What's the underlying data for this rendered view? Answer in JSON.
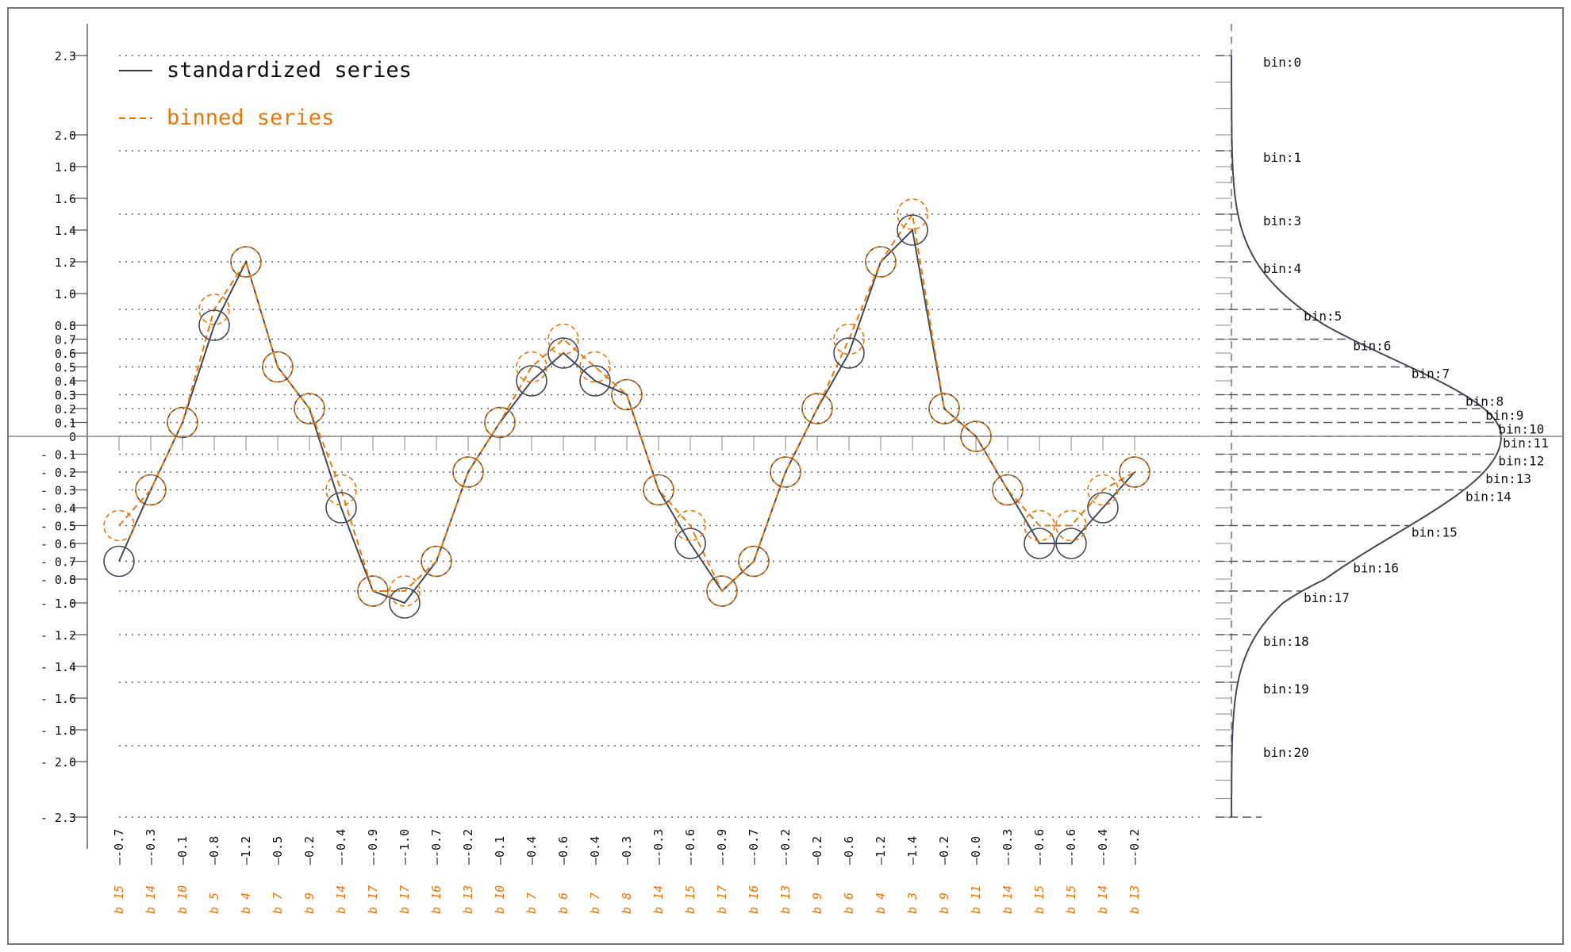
{
  "chart_data": {
    "type": "line",
    "legend": {
      "placement": "top-left",
      "entries": [
        "standardized series",
        "binned series"
      ]
    },
    "y_tick_labels": [
      "2.3",
      "2.0",
      "1.8",
      "1.6",
      "1.4",
      "1.2",
      "1.0",
      "0.8",
      "0.7",
      "0.6",
      "0.5",
      "0.4",
      "0.3",
      "0.2",
      "0.1",
      "0",
      "- 0.1",
      "- 0.2",
      "- 0.3",
      "- 0.4",
      "- 0.5",
      "- 0.6",
      "- 0.7",
      "- 0.8",
      "- 1.0",
      "- 1.2",
      "- 1.4",
      "- 1.6",
      "- 1.8",
      "- 2.0",
      "- 2.3"
    ],
    "ylim": [
      -2.3,
      2.3
    ],
    "grid": "dotted horizontal at bin edges",
    "x_labels": [
      "-0.7",
      "-0.3",
      "0.1",
      "0.8",
      "1.2",
      "0.5",
      "0.2",
      "-0.4",
      "-0.9",
      "-1.0",
      "-0.7",
      "-0.2",
      "0.1",
      "0.4",
      "0.6",
      "0.4",
      "0.3",
      "-0.3",
      "-0.6",
      "-0.9",
      "-0.7",
      "-0.2",
      "0.2",
      "0.6",
      "1.2",
      "1.4",
      "0.2",
      "0.0",
      "-0.3",
      "-0.6",
      "-0.6",
      "-0.4",
      "-0.2"
    ],
    "bin_labels": [
      "b 15",
      "b 14",
      "b 10",
      "b 5",
      "b 4",
      "b 7",
      "b 9",
      "b 14",
      "b 17",
      "b 17",
      "b 16",
      "b 13",
      "b 10",
      "b 7",
      "b 6",
      "b 7",
      "b 8",
      "b 14",
      "b 15",
      "b 17",
      "b 16",
      "b 13",
      "b 9",
      "b 6",
      "b 4",
      "b 3",
      "b 9",
      "b 11",
      "b 14",
      "b 15",
      "b 15",
      "b 14",
      "b 13"
    ],
    "series": [
      {
        "name": "standardized series",
        "color": "#444a55",
        "style": "solid",
        "values": [
          -0.7,
          -0.3,
          0.1,
          0.8,
          1.2,
          0.5,
          0.2,
          -0.4,
          -0.9,
          -1.0,
          -0.7,
          -0.2,
          0.1,
          0.4,
          0.6,
          0.4,
          0.3,
          -0.3,
          -0.6,
          -0.9,
          -0.7,
          -0.2,
          0.2,
          0.6,
          1.2,
          1.4,
          0.2,
          0.0,
          -0.3,
          -0.6,
          -0.6,
          -0.4,
          -0.2
        ]
      },
      {
        "name": "binned series",
        "color": "#e8780a",
        "style": "dashed",
        "values": [
          -0.5,
          -0.3,
          0.1,
          0.9,
          1.2,
          0.5,
          0.2,
          -0.3,
          -0.9,
          -0.9,
          -0.7,
          -0.2,
          0.1,
          0.5,
          0.7,
          0.5,
          0.3,
          -0.3,
          -0.5,
          -0.9,
          -0.7,
          -0.2,
          0.2,
          0.7,
          1.2,
          1.5,
          0.2,
          0.0,
          -0.3,
          -0.5,
          -0.5,
          -0.3,
          -0.2
        ]
      }
    ],
    "bin_edges": [
      {
        "label": "bin:0",
        "value": 2.3
      },
      {
        "label": "bin:1",
        "value": 1.9
      },
      {
        "label": "bin:3",
        "value": 1.5
      },
      {
        "label": "bin:4",
        "value": 1.2
      },
      {
        "label": "bin:5",
        "value": 0.9
      },
      {
        "label": "bin:6",
        "value": 0.7
      },
      {
        "label": "bin:7",
        "value": 0.5
      },
      {
        "label": "bin:8",
        "value": 0.3
      },
      {
        "label": "bin:9",
        "value": 0.2
      },
      {
        "label": "bin:10",
        "value": 0.1
      },
      {
        "label": "bin:11",
        "value": 0.0
      },
      {
        "label": "bin:12",
        "value": -0.1
      },
      {
        "label": "bin:13",
        "value": -0.2
      },
      {
        "label": "bin:14",
        "value": -0.3
      },
      {
        "label": "bin:15",
        "value": -0.5
      },
      {
        "label": "bin:16",
        "value": -0.7
      },
      {
        "label": "bin:17",
        "value": -0.9
      },
      {
        "label": "bin:18",
        "value": -1.2
      },
      {
        "label": "bin:19",
        "value": -1.5
      },
      {
        "label": "bin:20",
        "value": -1.9
      }
    ],
    "density": "normal distribution curve over bins"
  }
}
